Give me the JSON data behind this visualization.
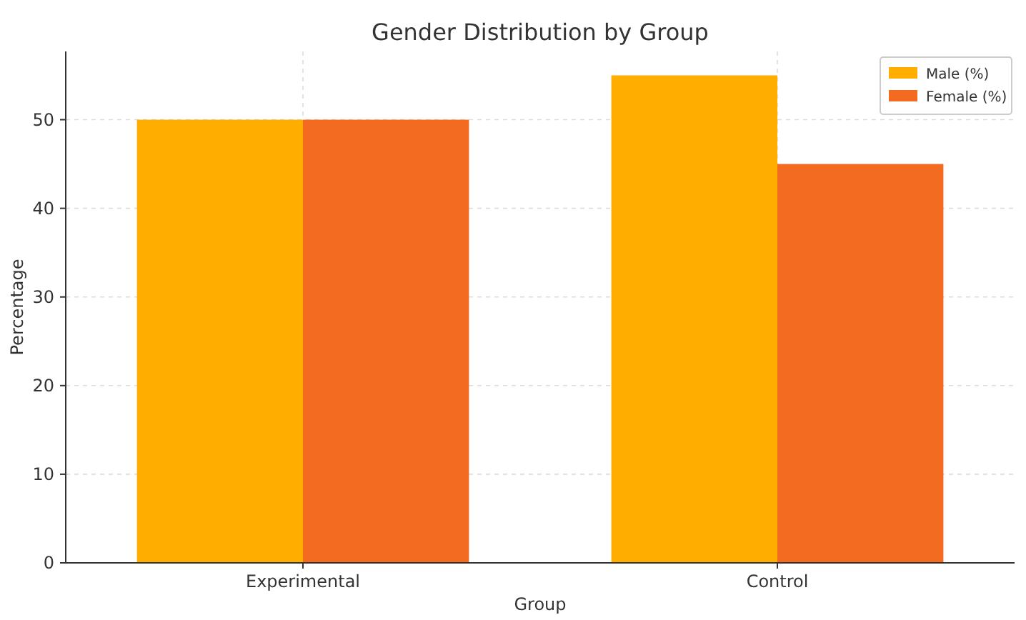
{
  "chart_data": {
    "type": "bar",
    "title": "Gender Distribution by Group",
    "xlabel": "Group",
    "ylabel": "Percentage",
    "categories": [
      "Experimental",
      "Control"
    ],
    "series": [
      {
        "name": "Male (%)",
        "color": "#ffae00",
        "values": [
          50,
          55
        ]
      },
      {
        "name": "Female (%)",
        "color": "#f26b21",
        "values": [
          50,
          45
        ]
      }
    ],
    "ylim": [
      0,
      57.7
    ],
    "yticks": [
      0,
      10,
      20,
      30,
      40,
      50
    ],
    "grid": true,
    "legend": "top right"
  }
}
